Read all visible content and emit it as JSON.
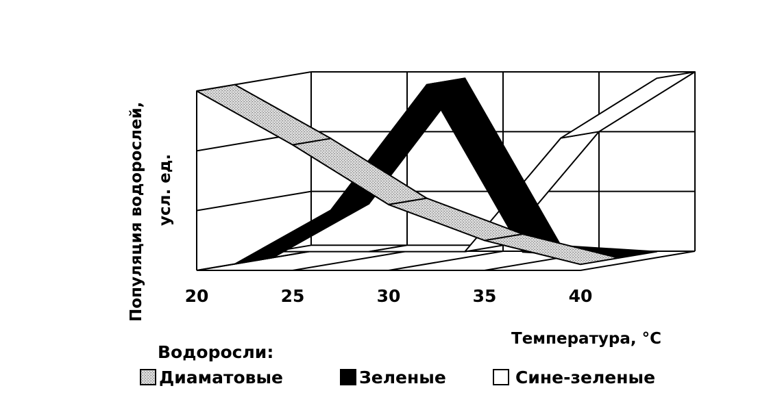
{
  "chart_data": {
    "type": "area",
    "title": "",
    "xlabel": "Температура, °С",
    "ylabel_line1": "Популяция водорослей,",
    "ylabel_line2": "усл. ед.",
    "categories": [
      "20",
      "25",
      "30",
      "35",
      "40"
    ],
    "x": [
      20,
      25,
      30,
      35,
      40
    ],
    "ylim": [
      0,
      3
    ],
    "grid": true,
    "legend": {
      "title": "Водоросли:",
      "position": "bottom-left"
    },
    "series": [
      {
        "name": "Диаматовые",
        "values": [
          3.0,
          2.1,
          1.1,
          0.5,
          0.1
        ],
        "color": "#cfcfcf"
      },
      {
        "name": "Зеленые",
        "values": [
          0.0,
          0.9,
          3.0,
          0.2,
          0.1
        ],
        "color": "#000000"
      },
      {
        "name": "Сине-зеленые",
        "values": [
          0.1,
          0.1,
          0.1,
          2.0,
          3.0
        ],
        "color": "#ffffff"
      }
    ]
  }
}
